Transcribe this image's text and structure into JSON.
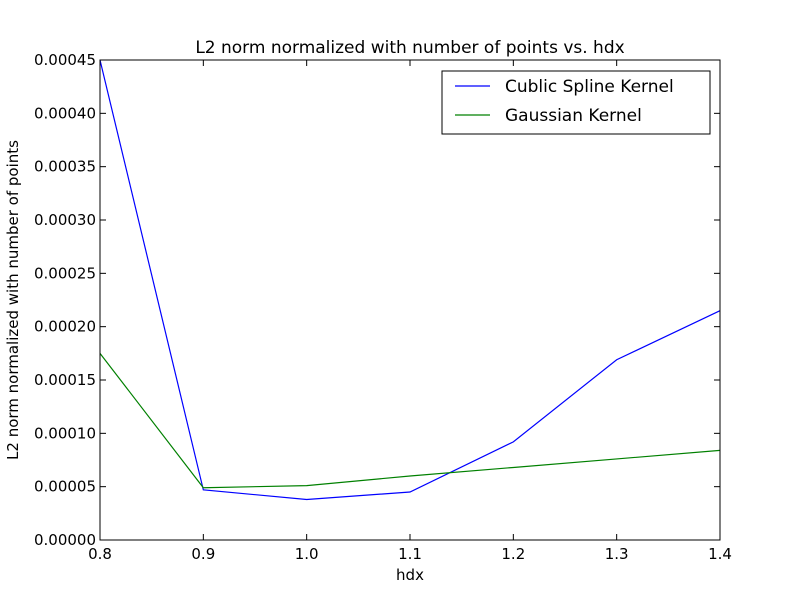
{
  "chart_data": {
    "type": "line",
    "title": "L2 norm normalized with number of points vs. hdx",
    "xlabel": "hdx",
    "ylabel": "L2 norm normalized with number of points",
    "xlim": [
      0.8,
      1.4
    ],
    "ylim": [
      0.0,
      0.00045
    ],
    "x": [
      0.8,
      0.9,
      1.0,
      1.1,
      1.2,
      1.3,
      1.4
    ],
    "xticks": [
      "0.8",
      "0.9",
      "1.0",
      "1.1",
      "1.2",
      "1.3",
      "1.4"
    ],
    "yticks": [
      "0.00000",
      "0.00005",
      "0.00010",
      "0.00015",
      "0.00020",
      "0.00025",
      "0.00030",
      "0.00035",
      "0.00040",
      "0.00045"
    ],
    "grid": false,
    "legend_position": "top-right",
    "series": [
      {
        "name": "Cublic Spline Kernel",
        "color": "#0000ff",
        "values": [
          0.00045,
          4.7e-05,
          3.8e-05,
          4.5e-05,
          9.2e-05,
          0.000169,
          0.000215
        ]
      },
      {
        "name": "Gaussian Kernel",
        "color": "#008000",
        "values": [
          0.000175,
          4.9e-05,
          5.1e-05,
          6e-05,
          6.8e-05,
          7.6e-05,
          8.4e-05
        ]
      }
    ]
  }
}
